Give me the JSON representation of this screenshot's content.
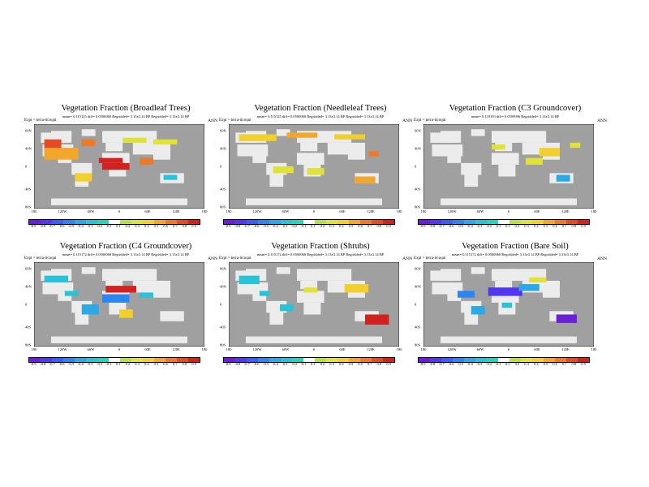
{
  "colors": {
    "ocean": "#a0a0a0",
    "land": "#ececec",
    "scale": [
      "#6a1fd6",
      "#5236f0",
      "#3c5cf5",
      "#2b86f2",
      "#2aa9e6",
      "#27c3d9",
      "#28d4b8",
      "#ffffff",
      "#b6e04a",
      "#e0e238",
      "#f2cf2c",
      "#f2a72a",
      "#ed7a28",
      "#e64a24",
      "#d1221f"
    ]
  },
  "common": {
    "expt": "Expt = terra-itcoqui",
    "season": "ANN",
    "lon_ticks": [
      "180",
      "120W",
      "60W",
      "0",
      "60E",
      "120E",
      "180"
    ],
    "lat_ticks": [
      "60N",
      "40N",
      "0",
      "40S",
      "80S"
    ],
    "scale_labels": [
      "-0.9",
      "-0.8",
      "-0.7",
      "-0.6",
      "-0.5",
      "-0.4",
      "-0.3",
      "-0.2",
      "-0.1",
      "0.1",
      "0.2",
      "0.3",
      "0.4",
      "0.5",
      "0.6",
      "0.7",
      "0.8",
      "0.9"
    ]
  },
  "panels": [
    {
      "title": "Vegetation Fraction (Broadleaf Trees)",
      "stats": "mean= 0.115125 diff= 0.0506960    Regridded= 3.13x3.14 BP    Regridded= 3.13x3.14 BP"
    },
    {
      "title": "Vegetation Fraction (Needleleaf Trees)",
      "stats": "mean= 0.115125 diff= 0.0506960    Regridded= 3.13x3.14 BP    Regridded= 3.13x3.14 BP"
    },
    {
      "title": "Vegetation Fraction (C3 Groundcover)",
      "stats": "mean= 0.119193 diff= 0.0599996    Regridded= 3.13x3.14 BP"
    },
    {
      "title": "Vegetation Fraction (C4 Groundcover)",
      "stats": "mean= 0.115172 diff= 0.0506960    Regridded= 3.13x3.14 BP    Regridded= 3.13x3.14 BP"
    },
    {
      "title": "Vegetation Fraction (Shrubs)",
      "stats": "mean= 0.115172 diff= 0.0506960    Regridded= 3.13x3.14 BP    Regridded= 3.13x3.14 BP"
    },
    {
      "title": "Vegetation Fraction (Bare Soil)",
      "stats": "mean= 0.115172 diff= 0.0506960    Regridded= 3.13x3.14 BP    Regridded= 3.13x3.14 BP"
    }
  ]
}
